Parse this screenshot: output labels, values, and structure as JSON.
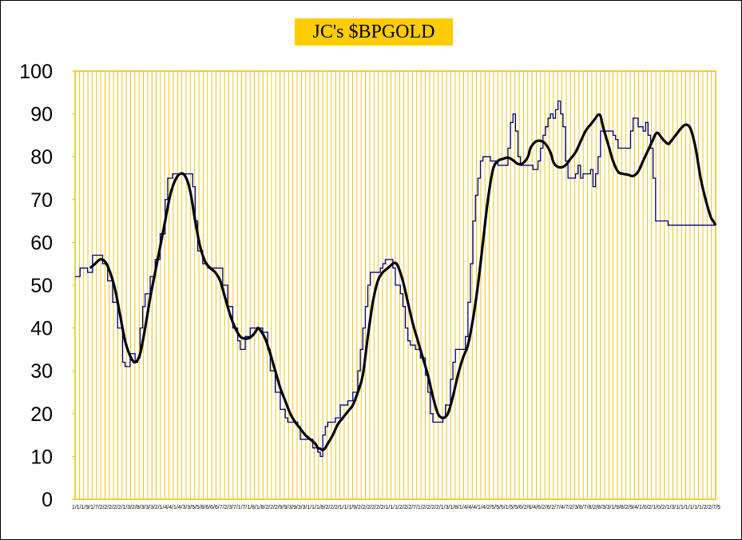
{
  "chart_data": {
    "type": "line",
    "title": "JC's $BPGOLD",
    "xlabel": "",
    "ylabel": "",
    "ylim": [
      0,
      100
    ],
    "yticks": [
      0,
      10,
      20,
      30,
      40,
      50,
      60,
      70,
      80,
      90,
      100
    ],
    "grid": "vertical",
    "colors": {
      "title_bg": "#FFCC00",
      "grid": "#E8C000",
      "plot_border": "#E8C000",
      "raw_series": "#000080",
      "smoothed_series": "#000000"
    },
    "series": [
      {
        "name": "",
        "style": "thin step line",
        "points": [
          [
            0,
            52
          ],
          [
            2,
            54
          ],
          [
            5,
            53
          ],
          [
            7,
            57
          ],
          [
            11,
            55
          ],
          [
            13,
            51
          ],
          [
            15,
            46
          ],
          [
            17,
            40
          ],
          [
            19,
            32
          ],
          [
            20,
            31
          ],
          [
            22,
            34
          ],
          [
            24,
            32
          ],
          [
            25,
            33
          ],
          [
            26,
            40
          ],
          [
            27,
            45
          ],
          [
            28,
            48
          ],
          [
            30,
            52
          ],
          [
            32,
            56
          ],
          [
            34,
            62
          ],
          [
            36,
            70
          ],
          [
            37,
            75
          ],
          [
            39,
            76
          ],
          [
            45,
            76
          ],
          [
            47,
            73
          ],
          [
            48,
            65
          ],
          [
            49,
            58
          ],
          [
            51,
            55
          ],
          [
            53,
            54
          ],
          [
            57,
            54
          ],
          [
            59,
            50
          ],
          [
            61,
            45
          ],
          [
            63,
            40
          ],
          [
            65,
            37
          ],
          [
            66,
            35
          ],
          [
            68,
            38
          ],
          [
            70,
            40
          ],
          [
            75,
            39
          ],
          [
            77,
            35
          ],
          [
            78,
            30
          ],
          [
            80,
            25
          ],
          [
            82,
            21
          ],
          [
            84,
            19
          ],
          [
            85,
            18
          ],
          [
            89,
            17
          ],
          [
            90,
            14
          ],
          [
            94,
            14
          ],
          [
            95,
            12
          ],
          [
            97,
            11
          ],
          [
            98,
            10
          ],
          [
            99,
            15
          ],
          [
            100,
            17
          ],
          [
            101,
            18
          ],
          [
            104,
            19
          ],
          [
            106,
            22
          ],
          [
            109,
            23
          ],
          [
            111,
            25
          ],
          [
            113,
            30
          ],
          [
            114,
            35
          ],
          [
            115,
            40
          ],
          [
            116,
            45
          ],
          [
            117,
            50
          ],
          [
            118,
            53
          ],
          [
            122,
            54
          ],
          [
            123,
            55
          ],
          [
            124,
            56
          ],
          [
            127,
            54
          ],
          [
            128,
            50
          ],
          [
            130,
            48
          ],
          [
            131,
            45
          ],
          [
            132,
            40
          ],
          [
            133,
            37
          ],
          [
            134,
            36
          ],
          [
            136,
            35
          ],
          [
            138,
            33
          ],
          [
            140,
            29
          ],
          [
            141,
            25
          ],
          [
            142,
            20
          ],
          [
            143,
            18
          ],
          [
            147,
            19
          ],
          [
            148,
            22
          ],
          [
            150,
            28
          ],
          [
            151,
            32
          ],
          [
            152,
            35
          ],
          [
            156,
            38
          ],
          [
            157,
            46
          ],
          [
            158,
            55
          ],
          [
            159,
            65
          ],
          [
            160,
            71
          ],
          [
            161,
            75
          ],
          [
            162,
            79
          ],
          [
            163,
            80
          ],
          [
            166,
            79
          ],
          [
            169,
            78
          ],
          [
            172,
            78
          ],
          [
            173,
            82
          ],
          [
            174,
            88
          ],
          [
            175,
            90
          ],
          [
            176,
            86
          ],
          [
            177,
            80
          ],
          [
            178,
            78
          ],
          [
            183,
            77
          ],
          [
            185,
            79
          ],
          [
            186,
            82
          ],
          [
            187,
            85
          ],
          [
            188,
            87
          ],
          [
            189,
            89
          ],
          [
            190,
            90
          ],
          [
            191,
            89
          ],
          [
            192,
            91
          ],
          [
            193,
            93
          ],
          [
            194,
            90
          ],
          [
            195,
            87
          ],
          [
            196,
            79
          ],
          [
            197,
            75
          ],
          [
            200,
            76
          ],
          [
            201,
            78
          ],
          [
            202,
            75
          ],
          [
            203,
            76
          ],
          [
            206,
            77
          ],
          [
            207,
            73
          ],
          [
            208,
            76
          ],
          [
            209,
            80
          ],
          [
            210,
            86
          ],
          [
            215,
            85
          ],
          [
            216,
            84
          ],
          [
            217,
            82
          ],
          [
            221,
            82
          ],
          [
            222,
            86
          ],
          [
            223,
            89
          ],
          [
            225,
            87
          ],
          [
            227,
            86
          ],
          [
            228,
            88
          ],
          [
            229,
            85
          ],
          [
            230,
            82
          ],
          [
            231,
            75
          ],
          [
            232,
            65
          ],
          [
            237,
            64
          ],
          [
            240,
            64
          ]
        ]
      },
      {
        "name": "",
        "style": "thick smoothed line",
        "points": [
          [
            6,
            54
          ],
          [
            8,
            55
          ],
          [
            10,
            56
          ],
          [
            12,
            55.5
          ],
          [
            14,
            53
          ],
          [
            16,
            49
          ],
          [
            18,
            43
          ],
          [
            20,
            37
          ],
          [
            22,
            33.5
          ],
          [
            24,
            32
          ],
          [
            26,
            34
          ],
          [
            28,
            40
          ],
          [
            30,
            47
          ],
          [
            32,
            53
          ],
          [
            34,
            59
          ],
          [
            36,
            65
          ],
          [
            38,
            71
          ],
          [
            40,
            74.5
          ],
          [
            42,
            76
          ],
          [
            44,
            75.5
          ],
          [
            46,
            72
          ],
          [
            48,
            65
          ],
          [
            50,
            59
          ],
          [
            52,
            55.5
          ],
          [
            54,
            54
          ],
          [
            56,
            53
          ],
          [
            58,
            51
          ],
          [
            60,
            47
          ],
          [
            62,
            43
          ],
          [
            64,
            40
          ],
          [
            66,
            38
          ],
          [
            68,
            37.5
          ],
          [
            70,
            37.8
          ],
          [
            72,
            39
          ],
          [
            73,
            40
          ],
          [
            74,
            39.5
          ],
          [
            76,
            37.5
          ],
          [
            78,
            34
          ],
          [
            80,
            30
          ],
          [
            82,
            26
          ],
          [
            84,
            23
          ],
          [
            86,
            20
          ],
          [
            88,
            18
          ],
          [
            90,
            16.5
          ],
          [
            92,
            15
          ],
          [
            94,
            14
          ],
          [
            96,
            13
          ],
          [
            97,
            12
          ],
          [
            98,
            11.8
          ],
          [
            99,
            11.5
          ],
          [
            100,
            12
          ],
          [
            101,
            13
          ],
          [
            103,
            15
          ],
          [
            105,
            17.5
          ],
          [
            107,
            19
          ],
          [
            109,
            20.5
          ],
          [
            111,
            22
          ],
          [
            113,
            25
          ],
          [
            115,
            29
          ],
          [
            117,
            38
          ],
          [
            119,
            46
          ],
          [
            121,
            51
          ],
          [
            123,
            53
          ],
          [
            125,
            54
          ],
          [
            127,
            55
          ],
          [
            128,
            55.2
          ],
          [
            129,
            54.5
          ],
          [
            131,
            51
          ],
          [
            133,
            46
          ],
          [
            135,
            41
          ],
          [
            137,
            37
          ],
          [
            139,
            33
          ],
          [
            141,
            29
          ],
          [
            143,
            24
          ],
          [
            145,
            20
          ],
          [
            147,
            19
          ],
          [
            149,
            20
          ],
          [
            151,
            24
          ],
          [
            153,
            29
          ],
          [
            155,
            33
          ],
          [
            157,
            36
          ],
          [
            159,
            42
          ],
          [
            161,
            50
          ],
          [
            163,
            60
          ],
          [
            165,
            70
          ],
          [
            167,
            77
          ],
          [
            169,
            79
          ],
          [
            171,
            79.5
          ],
          [
            173,
            79.8
          ],
          [
            175,
            79.2
          ],
          [
            177,
            78.3
          ],
          [
            179,
            78.5
          ],
          [
            181,
            80
          ],
          [
            182,
            82
          ],
          [
            184,
            83.5
          ],
          [
            186,
            83.7
          ],
          [
            188,
            83
          ],
          [
            190,
            81
          ],
          [
            191,
            79
          ],
          [
            192,
            78
          ],
          [
            194,
            77.5
          ],
          [
            196,
            78
          ],
          [
            198,
            79.5
          ],
          [
            200,
            81
          ],
          [
            202,
            83.5
          ],
          [
            204,
            86
          ],
          [
            206,
            87.5
          ],
          [
            208,
            89
          ],
          [
            209,
            89.8
          ],
          [
            210,
            89.5
          ],
          [
            211,
            87
          ],
          [
            213,
            83
          ],
          [
            215,
            79
          ],
          [
            217,
            76.5
          ],
          [
            219,
            76
          ],
          [
            221,
            75.8
          ],
          [
            223,
            75.5
          ],
          [
            225,
            76.5
          ],
          [
            227,
            79
          ],
          [
            229,
            81.5
          ],
          [
            231,
            84
          ],
          [
            232,
            85.3
          ],
          [
            233,
            85.5
          ],
          [
            235,
            84
          ],
          [
            237,
            83
          ],
          [
            238,
            83.5
          ],
          [
            240,
            85
          ],
          [
            242,
            86.5
          ],
          [
            244,
            87.5
          ],
          [
            246,
            86.5
          ],
          [
            248,
            82
          ],
          [
            250,
            75
          ],
          [
            252,
            70
          ],
          [
            254,
            66
          ],
          [
            255,
            65
          ],
          [
            256,
            64
          ]
        ]
      }
    ],
    "x_tick_labels": "1/1/1/9/1/7/2/2/2/2/2/1/3/2/8/3/3/3/2/1/4/4/1/4/3/3/5/5/8/6/6/6/7/2/3/7/1/7/1/8/1/8/2/2/2/9/9/3/9/3/3/1/1/1/8/2/2/2/1/1/1/9/2/2/2/2/2/2/1/1/1/2/2/2/7/1/2/2/2/2/1/3/1/8/1/4/4/4/1/4/2/5/5/5/1/5/5/6/2/6/4/6/2/6/2/7/4/7/2/3/8/7/8/2/8/3/3/1/9/8/2/9/4/1/0/2/1/0/2/1/3/1/1/1/1/1/1/2/2/7/5"
  }
}
